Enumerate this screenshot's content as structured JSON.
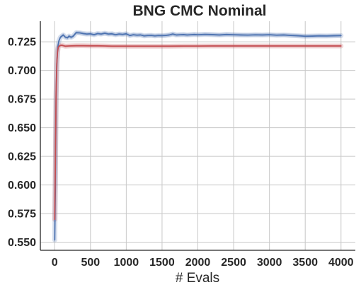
{
  "chart_data": {
    "type": "line",
    "title": "BNG CMC Nominal",
    "xlabel": "# Evals",
    "ylabel": "",
    "xlim": [
      -200,
      4200
    ],
    "ylim": [
      0.543,
      0.743
    ],
    "xticks": [
      0,
      500,
      1000,
      1500,
      2000,
      2500,
      3000,
      3500,
      4000
    ],
    "yticks": [
      0.55,
      0.575,
      0.6,
      0.625,
      0.65,
      0.675,
      0.7,
      0.725
    ],
    "ytick_labels": [
      "0.550",
      "0.575",
      "0.600",
      "0.625",
      "0.650",
      "0.675",
      "0.700",
      "0.725"
    ],
    "grid": true,
    "legend": "none",
    "series": [
      {
        "color": "#4c72b0",
        "band_color": "#4c72b0",
        "band_opacity": 0.25,
        "band_width": 0.0015,
        "x": [
          1,
          10,
          20,
          30,
          40,
          50,
          60,
          80,
          100,
          120,
          150,
          180,
          200,
          230,
          260,
          300,
          350,
          400,
          450,
          500,
          550,
          600,
          650,
          700,
          750,
          800,
          850,
          900,
          950,
          1000,
          1050,
          1100,
          1150,
          1200,
          1250,
          1300,
          1350,
          1400,
          1450,
          1500,
          1550,
          1600,
          1650,
          1700,
          1750,
          1800,
          1850,
          1900,
          1950,
          2000,
          2100,
          2200,
          2300,
          2400,
          2500,
          2600,
          2700,
          2800,
          2900,
          3000,
          3100,
          3200,
          3300,
          3400,
          3500,
          3600,
          3700,
          3800,
          3900,
          4000
        ],
        "y": [
          0.552,
          0.6,
          0.675,
          0.705,
          0.718,
          0.723,
          0.726,
          0.729,
          0.73,
          0.731,
          0.729,
          0.7285,
          0.73,
          0.729,
          0.73,
          0.733,
          0.7328,
          0.7322,
          0.7318,
          0.732,
          0.7312,
          0.7322,
          0.7318,
          0.7325,
          0.7318,
          0.732,
          0.7312,
          0.7318,
          0.7315,
          0.732,
          0.7305,
          0.7312,
          0.7308,
          0.731,
          0.7302,
          0.7305,
          0.7306,
          0.7302,
          0.7305,
          0.7304,
          0.7306,
          0.731,
          0.7318,
          0.731,
          0.7312,
          0.7313,
          0.731,
          0.7312,
          0.7314,
          0.7312,
          0.7315,
          0.7313,
          0.731,
          0.7314,
          0.7312,
          0.731,
          0.7309,
          0.7311,
          0.731,
          0.7312,
          0.7308,
          0.731,
          0.7306,
          0.7303,
          0.7299,
          0.73,
          0.7302,
          0.7301,
          0.7303,
          0.7304
        ]
      },
      {
        "color": "#c44e52",
        "band_color": "#c44e52",
        "band_opacity": 0.25,
        "band_width": 0.0012,
        "x": [
          1,
          10,
          20,
          30,
          40,
          50,
          60,
          80,
          100,
          150,
          200,
          300,
          400,
          500,
          600,
          700,
          800,
          900,
          1000,
          1200,
          1400,
          1600,
          1800,
          2000,
          2200,
          2400,
          2600,
          2800,
          3000,
          3200,
          3400,
          3600,
          3800,
          4000
        ],
        "y": [
          0.57,
          0.62,
          0.68,
          0.706,
          0.716,
          0.72,
          0.7212,
          0.7218,
          0.722,
          0.7212,
          0.7214,
          0.7216,
          0.7216,
          0.7215,
          0.7215,
          0.7214,
          0.7212,
          0.7212,
          0.7212,
          0.7212,
          0.7212,
          0.7212,
          0.7213,
          0.7213,
          0.7214,
          0.7214,
          0.7214,
          0.7214,
          0.7214,
          0.7214,
          0.7214,
          0.7214,
          0.7214,
          0.7214
        ]
      }
    ]
  }
}
